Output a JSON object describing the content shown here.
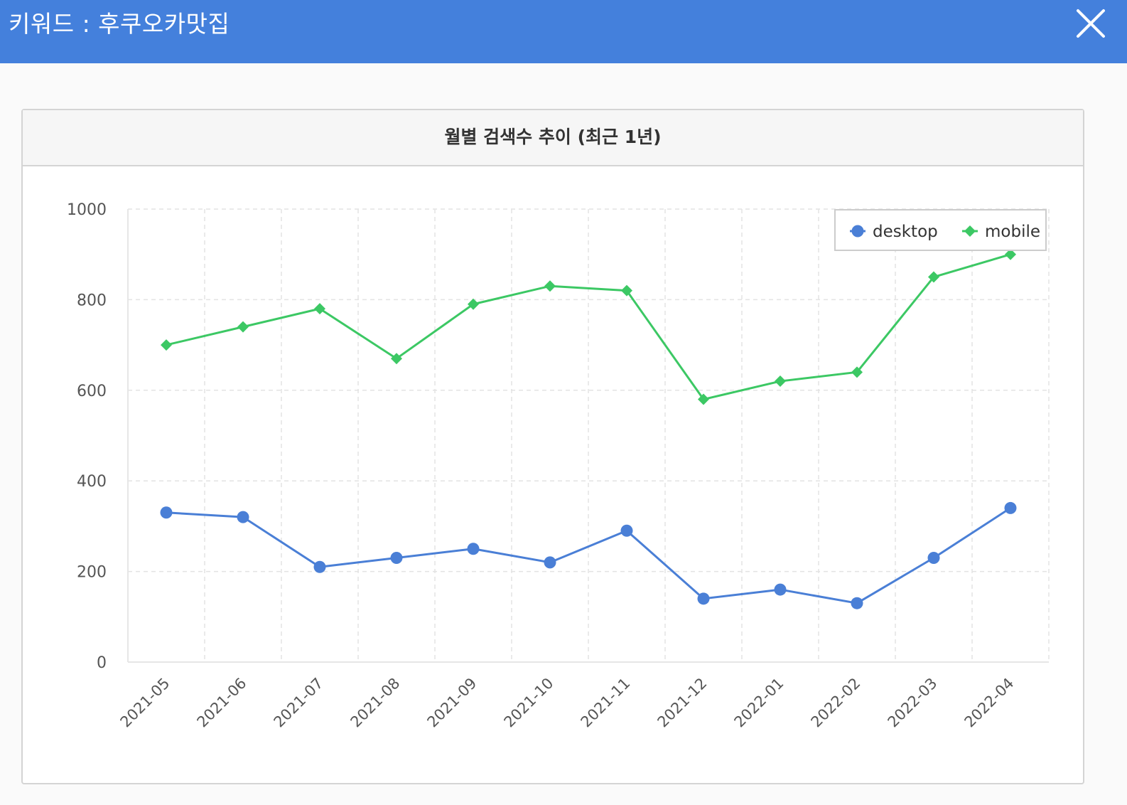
{
  "header": {
    "title": "키워드 : 후쿠오카맛집",
    "background": "#4480dc"
  },
  "card": {
    "title": "월별 검색수 추이 (최근 1년)"
  },
  "icons": {
    "close": "close-icon"
  },
  "chart_data": {
    "type": "line",
    "title": "",
    "xlabel": "",
    "ylabel": "",
    "categories": [
      "2021-05",
      "2021-06",
      "2021-07",
      "2021-08",
      "2021-09",
      "2021-10",
      "2021-11",
      "2021-12",
      "2022-01",
      "2022-02",
      "2022-03",
      "2022-04"
    ],
    "ylim": [
      0,
      1000
    ],
    "yticks": [
      0,
      200,
      400,
      600,
      800,
      1000
    ],
    "grid": true,
    "legend_position": "top-right",
    "series": [
      {
        "name": "desktop",
        "color": "#4a7fd6",
        "marker": "circle",
        "values": [
          330,
          320,
          210,
          230,
          250,
          220,
          290,
          140,
          160,
          130,
          230,
          340
        ]
      },
      {
        "name": "mobile",
        "color": "#3cc864",
        "marker": "diamond",
        "values": [
          700,
          740,
          780,
          670,
          790,
          830,
          820,
          580,
          620,
          640,
          850,
          900
        ]
      }
    ]
  }
}
